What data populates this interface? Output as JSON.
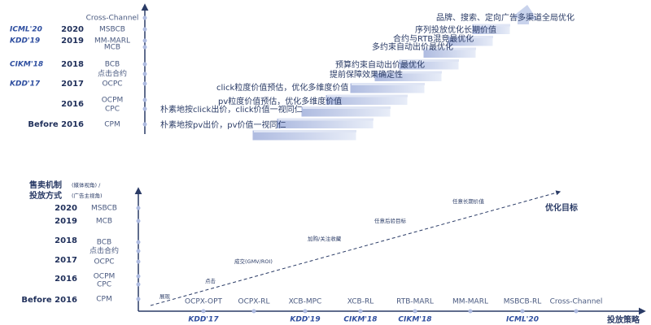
{
  "top": {
    "conferences": [
      "ICML'20",
      "KDD'19",
      "CIKM'18",
      "KDD'17"
    ],
    "years": [
      "2020",
      "2019",
      "2018",
      "2017",
      "2016",
      "Before 2016"
    ],
    "mechanisms": [
      "Cross-Channel",
      "MSBCB",
      "MM-MARL",
      "MCB",
      "BCB",
      "点击合约",
      "OCPC",
      "OCPM",
      "CPC",
      "CPM"
    ],
    "steps": [
      "品牌、搜索、定向广告多渠道全局优化",
      "序列投放优化长期价值",
      "合约与RTB混竞最优化",
      "多约束自动出价最优化",
      "预算约束自动出价最优化",
      "提前保障效果确定性",
      "click粒度价值预估，优化多维度价值",
      "pv粒度价值预估，优化多维度价值",
      "朴素地按click出价，click价值一视同仁",
      "朴素地按pv出价，pv价值一视同仁"
    ]
  },
  "bottom": {
    "y_title_line1": "售卖机制",
    "y_note_line1": "(媒体视角) /",
    "y_title_line2": "投放方式",
    "y_note_line2": "(广告主视角)",
    "years": [
      "2020",
      "2019",
      "2018",
      "2017",
      "2016",
      "Before 2016"
    ],
    "mechanisms": [
      "MSBCB",
      "MCB",
      "BCB",
      "点击合约",
      "OCPC",
      "OCPM",
      "CPC",
      "CPM"
    ],
    "strategies": [
      "OCPX-OPT",
      "OCPX-RL",
      "XCB-MPC",
      "XCB-RL",
      "RTB-MARL",
      "MM-MARL",
      "MSBCB-RL",
      "Cross-Channel"
    ],
    "conferences": [
      "KDD'17",
      "KDD'19",
      "CIKM'18",
      "CIKM'18",
      "ICML'20"
    ],
    "objectives": [
      "展现",
      "点击",
      "成交(GMV/ROI)",
      "加购/关注收藏",
      "任意后验目标",
      "任意长期价值"
    ],
    "objective_title": "优化目标",
    "x_title": "投放策略"
  }
}
